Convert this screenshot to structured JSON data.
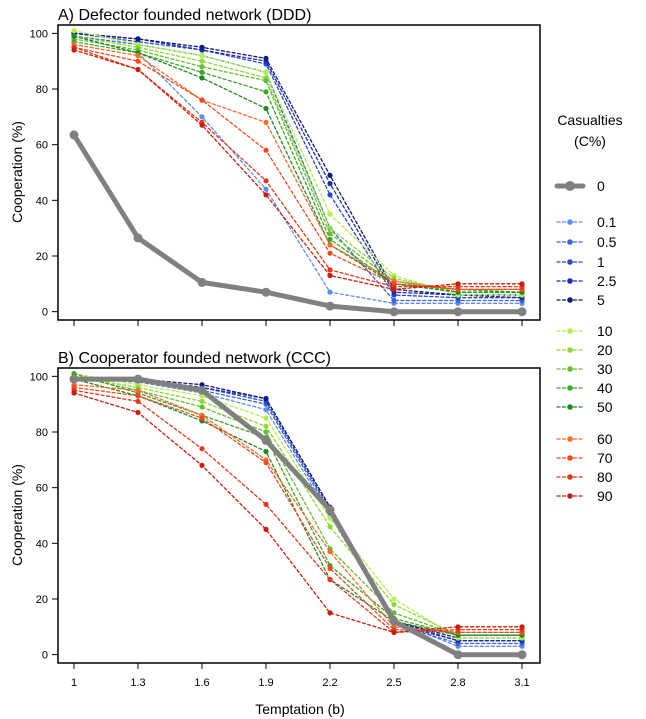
{
  "legend": {
    "title_line1": "Casualties",
    "title_line2": "(C%)",
    "placement": "right"
  },
  "colors": {
    "baseline": "#808080",
    "0.1": "#5e8ef0",
    "0.5": "#3f62dc",
    "1": "#2a48c8",
    "2.5": "#1f2ea8",
    "5": "#0f1a7a",
    "10": "#b2f050",
    "20": "#8ed83a",
    "30": "#62c030",
    "40": "#3ea42a",
    "50": "#1f8a22",
    "60": "#ff6a2a",
    "70": "#f04a1e",
    "80": "#e03a18",
    "90": "#c81e10"
  },
  "chart_data": [
    {
      "type": "line",
      "title": "A) Defector founded network (DDD)",
      "ylabel": "Cooperation (%)",
      "xlabel": "",
      "x": [
        1,
        1.3,
        1.6,
        1.9,
        2.2,
        2.5,
        2.8,
        3.1
      ],
      "x_tick_labels": [
        "1",
        "1.3",
        "1.6",
        "1.9",
        "2.2",
        "2.5",
        "2.8",
        "3.1"
      ],
      "y_ticks": [
        0,
        20,
        40,
        60,
        80,
        100
      ],
      "ylim": [
        -3,
        103
      ],
      "grid": false,
      "series": [
        {
          "name": "0",
          "values": [
            63.5,
            26.5,
            10.5,
            7,
            2,
            0,
            0,
            0
          ]
        },
        {
          "name": "0.1",
          "values": [
            99,
            93,
            70,
            44,
            7,
            3,
            3,
            3
          ]
        },
        {
          "name": "0.5",
          "values": [
            99,
            96,
            92,
            86,
            30,
            4,
            4,
            4
          ]
        },
        {
          "name": "1",
          "values": [
            100,
            97,
            94,
            89,
            42,
            6,
            5,
            5
          ]
        },
        {
          "name": "2.5",
          "values": [
            100,
            98,
            94,
            90,
            46,
            7,
            6,
            5
          ]
        },
        {
          "name": "5",
          "values": [
            100,
            98,
            95,
            91,
            49,
            8,
            6,
            6
          ]
        },
        {
          "name": "10",
          "values": [
            101,
            96,
            92,
            86,
            35,
            13,
            6,
            6
          ]
        },
        {
          "name": "20",
          "values": [
            99,
            95,
            90,
            84,
            30,
            12,
            7,
            7
          ]
        },
        {
          "name": "30",
          "values": [
            98,
            94,
            88,
            83,
            28,
            11,
            7,
            7
          ]
        },
        {
          "name": "40",
          "values": [
            97,
            93,
            86,
            79,
            26,
            10,
            8,
            7
          ]
        },
        {
          "name": "50",
          "values": [
            99,
            93,
            84,
            73,
            24,
            10,
            7,
            7
          ]
        },
        {
          "name": "60",
          "values": [
            96,
            92,
            76,
            68,
            24,
            11,
            8,
            8
          ]
        },
        {
          "name": "70",
          "values": [
            95,
            90,
            76,
            58,
            21,
            10,
            8,
            8
          ]
        },
        {
          "name": "80",
          "values": [
            95,
            87,
            68,
            47,
            15,
            9,
            9,
            9
          ]
        },
        {
          "name": "90",
          "values": [
            94,
            87,
            67,
            42,
            13,
            8,
            10,
            10
          ]
        }
      ]
    },
    {
      "type": "line",
      "title": "B) Cooperator founded network (CCC)",
      "ylabel": "Cooperation (%)",
      "xlabel": "Temptation (b)",
      "x": [
        1,
        1.3,
        1.6,
        1.9,
        2.2,
        2.5,
        2.8,
        3.1
      ],
      "x_tick_labels": [
        "1",
        "1.3",
        "1.6",
        "1.9",
        "2.2",
        "2.5",
        "2.8",
        "3.1"
      ],
      "y_ticks": [
        0,
        20,
        40,
        60,
        80,
        100
      ],
      "ylim": [
        -3,
        103
      ],
      "grid": false,
      "series": [
        {
          "name": "0",
          "values": [
            99,
            99,
            95,
            77,
            52,
            12,
            0,
            0
          ]
        },
        {
          "name": "0.1",
          "values": [
            99,
            98,
            94,
            88,
            50,
            12,
            3,
            3
          ]
        },
        {
          "name": "0.5",
          "values": [
            99,
            98,
            95,
            90,
            51,
            11,
            4,
            4
          ]
        },
        {
          "name": "1",
          "values": [
            99,
            99,
            96,
            91,
            52,
            11,
            5,
            5
          ]
        },
        {
          "name": "2.5",
          "values": [
            99,
            99,
            96,
            92,
            53,
            12,
            5,
            5
          ]
        },
        {
          "name": "5",
          "values": [
            99,
            99,
            97,
            92,
            53,
            12,
            6,
            6
          ]
        },
        {
          "name": "10",
          "values": [
            101,
            97,
            93,
            85,
            49,
            20,
            6,
            6
          ]
        },
        {
          "name": "20",
          "values": [
            100,
            96,
            91,
            82,
            46,
            18,
            7,
            7
          ]
        },
        {
          "name": "30",
          "values": [
            100,
            95,
            89,
            80,
            38,
            15,
            7,
            7
          ]
        },
        {
          "name": "40",
          "values": [
            101,
            94,
            86,
            78,
            32,
            13,
            7,
            7
          ]
        },
        {
          "name": "50",
          "values": [
            99,
            93,
            84,
            73,
            27,
            12,
            7,
            7
          ]
        },
        {
          "name": "60",
          "values": [
            97,
            95,
            86,
            70,
            37,
            10,
            8,
            8
          ]
        },
        {
          "name": "70",
          "values": [
            96,
            93,
            85,
            69,
            31,
            9,
            8,
            8
          ]
        },
        {
          "name": "80",
          "values": [
            95,
            91,
            74,
            54,
            27,
            8,
            9,
            9
          ]
        },
        {
          "name": "90",
          "values": [
            94,
            87,
            68,
            45,
            15,
            8,
            10,
            10
          ]
        }
      ]
    }
  ]
}
